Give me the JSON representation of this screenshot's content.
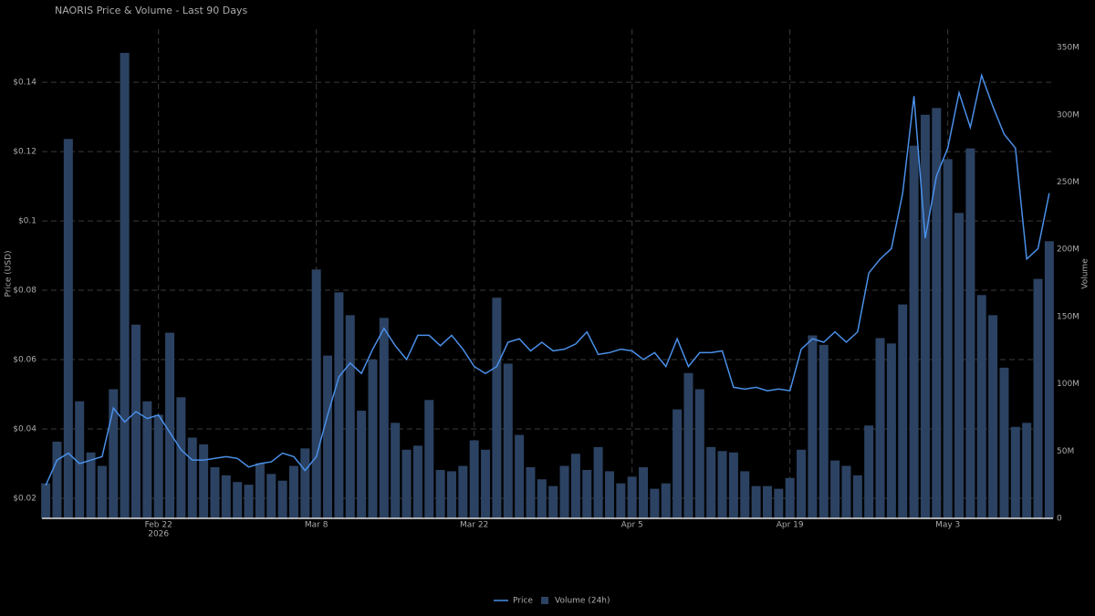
{
  "chart_data": {
    "type": "combo",
    "title": "NAORIS Price & Volume - Last 90 Days",
    "y_label": "Price (USD)",
    "y2_label": "Volume",
    "x_year_label": "2026",
    "x": [
      "2026-02-12",
      "2026-02-13",
      "2026-02-14",
      "2026-02-15",
      "2026-02-16",
      "2026-02-17",
      "2026-02-18",
      "2026-02-19",
      "2026-02-20",
      "2026-02-21",
      "2026-02-22",
      "2026-02-23",
      "2026-02-24",
      "2026-02-25",
      "2026-02-26",
      "2026-02-27",
      "2026-02-28",
      "2026-03-01",
      "2026-03-02",
      "2026-03-03",
      "2026-03-04",
      "2026-03-05",
      "2026-03-06",
      "2026-03-07",
      "2026-03-08",
      "2026-03-09",
      "2026-03-10",
      "2026-03-11",
      "2026-03-12",
      "2026-03-13",
      "2026-03-14",
      "2026-03-15",
      "2026-03-16",
      "2026-03-17",
      "2026-03-18",
      "2026-03-19",
      "2026-03-20",
      "2026-03-21",
      "2026-03-22",
      "2026-03-23",
      "2026-03-24",
      "2026-03-25",
      "2026-03-26",
      "2026-03-27",
      "2026-03-28",
      "2026-03-29",
      "2026-03-30",
      "2026-03-31",
      "2026-04-01",
      "2026-04-02",
      "2026-04-03",
      "2026-04-04",
      "2026-04-05",
      "2026-04-06",
      "2026-04-07",
      "2026-04-08",
      "2026-04-09",
      "2026-04-10",
      "2026-04-11",
      "2026-04-12",
      "2026-04-13",
      "2026-04-14",
      "2026-04-15",
      "2026-04-16",
      "2026-04-17",
      "2026-04-18",
      "2026-04-19",
      "2026-04-20",
      "2026-04-21",
      "2026-04-22",
      "2026-04-23",
      "2026-04-24",
      "2026-04-25",
      "2026-04-26",
      "2026-04-27",
      "2026-04-28",
      "2026-04-29",
      "2026-04-30",
      "2026-05-01",
      "2026-05-02",
      "2026-05-03",
      "2026-05-04",
      "2026-05-05",
      "2026-05-06",
      "2026-05-07",
      "2026-05-08",
      "2026-05-09",
      "2026-05-10",
      "2026-05-11",
      "2026-05-12"
    ],
    "series": [
      {
        "name": "Volume (24h)",
        "type": "bar",
        "axis": "y2",
        "color": "#2c4262",
        "values": [
          26000000,
          57000000,
          282000000,
          87000000,
          49000000,
          39000000,
          96000000,
          346000000,
          144000000,
          87000000,
          77000000,
          138000000,
          90000000,
          60000000,
          55000000,
          38000000,
          32000000,
          27000000,
          25000000,
          41000000,
          33000000,
          28000000,
          39000000,
          52000000,
          185000000,
          121000000,
          168000000,
          151000000,
          80000000,
          118000000,
          149000000,
          71000000,
          51000000,
          54000000,
          88000000,
          36000000,
          35000000,
          39000000,
          58000000,
          51000000,
          164000000,
          115000000,
          62000000,
          38000000,
          29000000,
          24000000,
          39000000,
          48000000,
          36000000,
          53000000,
          35000000,
          26000000,
          31000000,
          38000000,
          22000000,
          26000000,
          81000000,
          108000000,
          96000000,
          53000000,
          50000000,
          49000000,
          35000000,
          24000000,
          24000000,
          22000000,
          30000000,
          51000000,
          136000000,
          129000000,
          43000000,
          39000000,
          32000000,
          69000000,
          134000000,
          130000000,
          159000000,
          277000000,
          300000000,
          305000000,
          267000000,
          227000000,
          275000000,
          166000000,
          151000000,
          112000000,
          68000000,
          71000000,
          178000000,
          206000000
        ]
      },
      {
        "name": "Price",
        "type": "line",
        "color": "#4a8fe8",
        "values": [
          0.0237,
          0.031,
          0.033,
          0.03,
          0.031,
          0.032,
          0.046,
          0.042,
          0.045,
          0.043,
          0.044,
          0.039,
          0.034,
          0.031,
          0.031,
          0.0315,
          0.032,
          0.0315,
          0.029,
          0.03,
          0.0305,
          0.033,
          0.032,
          0.028,
          0.032,
          0.044,
          0.055,
          0.059,
          0.056,
          0.063,
          0.069,
          0.064,
          0.06,
          0.067,
          0.067,
          0.064,
          0.067,
          0.063,
          0.058,
          0.056,
          0.058,
          0.065,
          0.066,
          0.0625,
          0.065,
          0.0625,
          0.063,
          0.0645,
          0.068,
          0.0615,
          0.062,
          0.063,
          0.0625,
          0.06,
          0.062,
          0.058,
          0.066,
          0.058,
          0.062,
          0.062,
          0.0625,
          0.052,
          0.0515,
          0.052,
          0.051,
          0.0515,
          0.051,
          0.063,
          0.066,
          0.065,
          0.068,
          0.065,
          0.068,
          0.085,
          0.089,
          0.092,
          0.108,
          0.136,
          0.095,
          0.113,
          0.121,
          0.137,
          0.127,
          0.142,
          0.133,
          0.125,
          0.121,
          0.089,
          0.092,
          0.108
        ]
      }
    ],
    "xlim": [
      "2026-02-11T16:00:00Z",
      "2026-05-12T08:00:00Z"
    ],
    "xticks": [
      {
        "value": "2026-02-22",
        "label": "Feb 22"
      },
      {
        "value": "2026-03-08",
        "label": "Mar 8"
      },
      {
        "value": "2026-03-22",
        "label": "Mar 22"
      },
      {
        "value": "2026-04-05",
        "label": "Apr 5"
      },
      {
        "value": "2026-04-19",
        "label": "Apr 19"
      },
      {
        "value": "2026-05-03",
        "label": "May 3"
      }
    ],
    "ylim": [
      0.0142,
      0.1553
    ],
    "yticks": [
      {
        "value": 0.02,
        "label": "$0.02"
      },
      {
        "value": 0.04,
        "label": "$0.04"
      },
      {
        "value": 0.06,
        "label": "$0.06"
      },
      {
        "value": 0.08,
        "label": "$0.08"
      },
      {
        "value": 0.1,
        "label": "$0.1"
      },
      {
        "value": 0.12,
        "label": "$0.12"
      },
      {
        "value": 0.14,
        "label": "$0.14"
      }
    ],
    "y2lim": [
      0,
      363600000
    ],
    "y2ticks": [
      0,
      {
        "value": 50000000,
        "label": "50M"
      },
      {
        "value": 100000000,
        "label": "100M"
      },
      {
        "value": 150000000,
        "label": "150M"
      },
      {
        "value": 200000000,
        "label": "200M"
      },
      {
        "value": 250000000,
        "label": "250M"
      },
      {
        "value": 300000000,
        "label": "300M"
      },
      {
        "value": 350000000,
        "label": "350M"
      }
    ],
    "grid": true
  }
}
